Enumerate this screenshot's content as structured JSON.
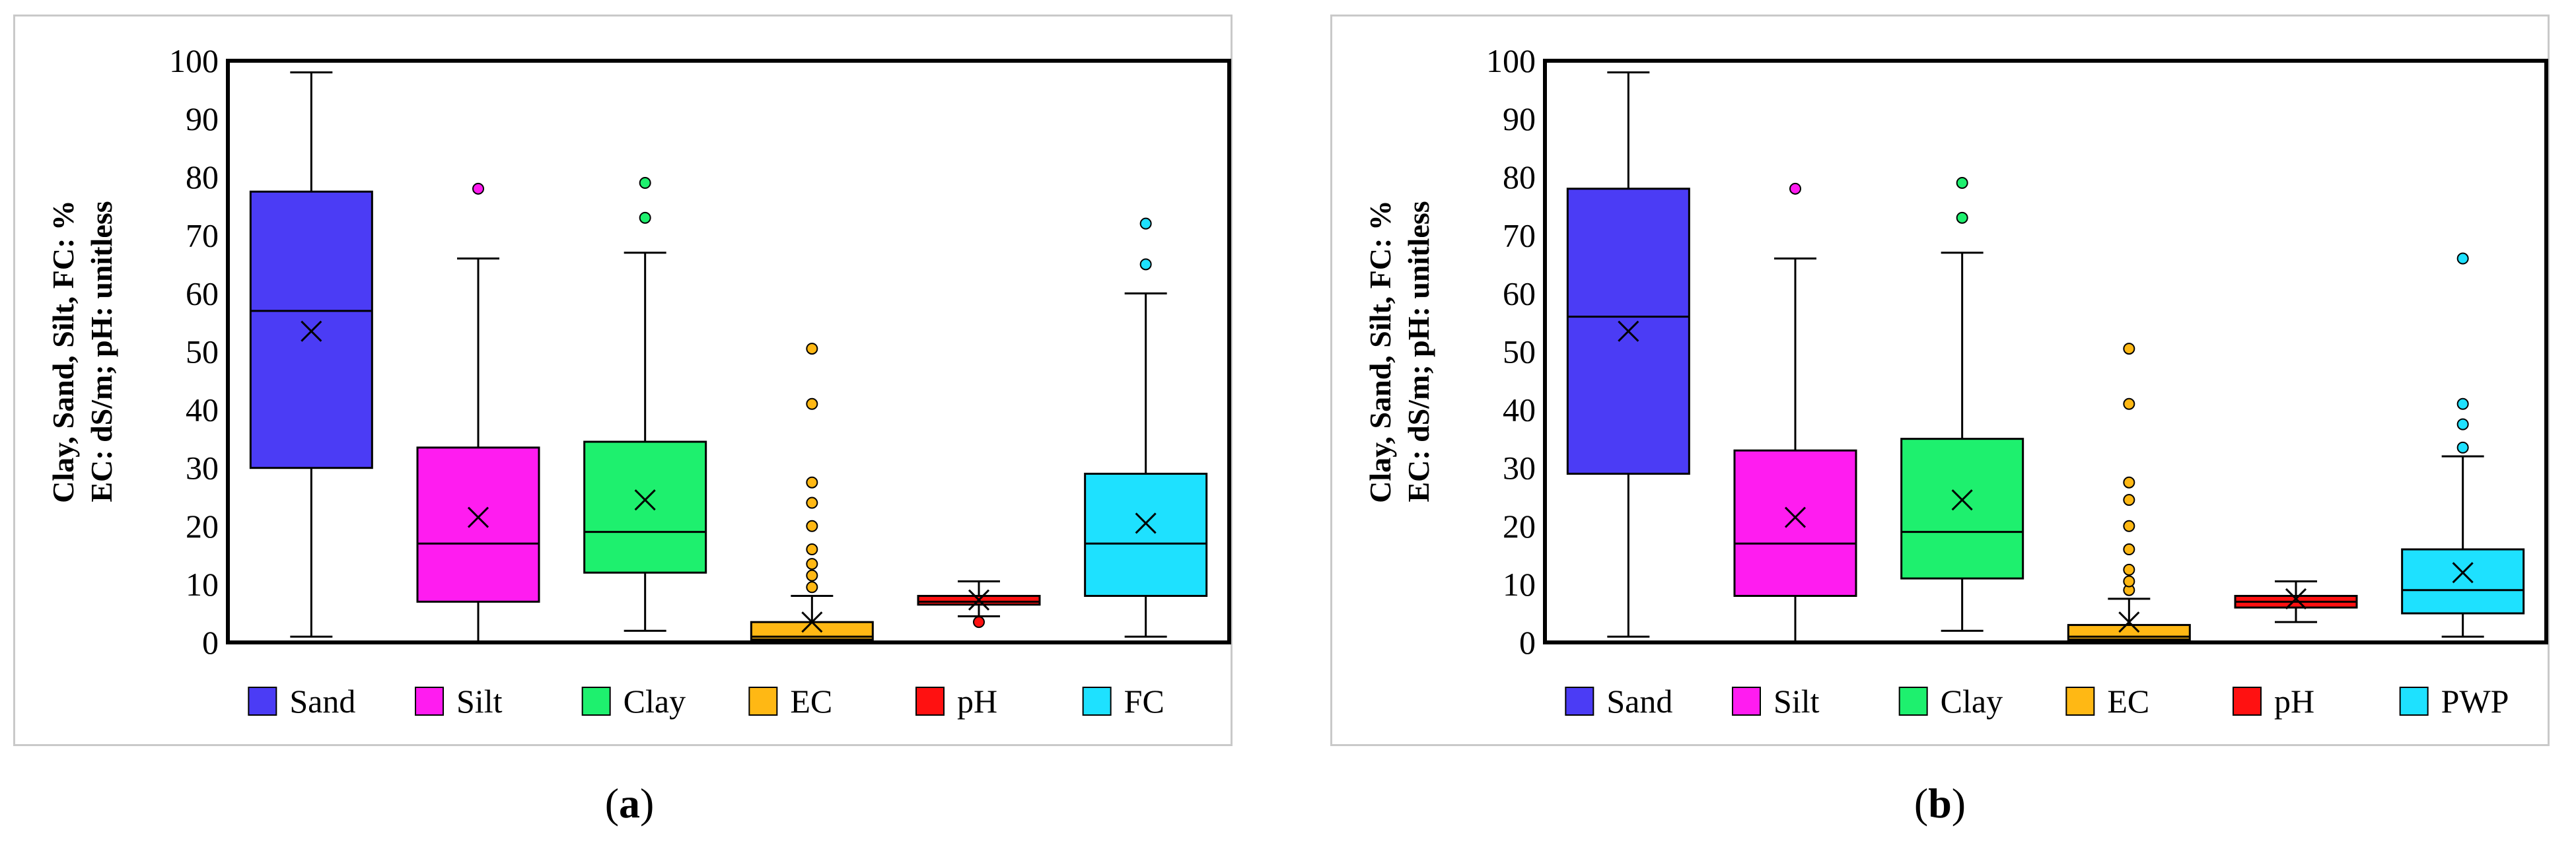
{
  "chart_data": [
    {
      "type": "box",
      "panel_label": "a",
      "ylabel_line1": "Clay, Sand, Silt, FC: %",
      "ylabel_line2": "EC: dS/m; pH: unitless",
      "ylim": [
        0,
        100
      ],
      "yticks": [
        0,
        10,
        20,
        30,
        40,
        50,
        60,
        70,
        80,
        90,
        100
      ],
      "legend_position": "bottom",
      "series": [
        {
          "name": "Sand",
          "color": "#4b3cf5",
          "min": 1,
          "q1": 30,
          "median": 57,
          "q3": 77.5,
          "max": 98,
          "mean": 53.5,
          "outliers": []
        },
        {
          "name": "Silt",
          "color": "#ff1cf0",
          "min": 0,
          "q1": 7,
          "median": 17,
          "q3": 33.5,
          "max": 66,
          "mean": 21.5,
          "outliers": [
            78
          ]
        },
        {
          "name": "Clay",
          "color": "#1ef06e",
          "min": 2,
          "q1": 12,
          "median": 19,
          "q3": 34.5,
          "max": 67,
          "mean": 24.5,
          "outliers": [
            73,
            79
          ]
        },
        {
          "name": "EC",
          "color": "#ffb814",
          "min": 0,
          "q1": 0.5,
          "median": 1,
          "q3": 3.5,
          "max": 8,
          "mean": 3.5,
          "outliers": [
            9.5,
            11.5,
            13.5,
            16,
            20,
            24,
            27.5,
            41,
            50.5
          ]
        },
        {
          "name": "pH",
          "color": "#ff1111",
          "min": 4.5,
          "q1": 6.5,
          "median": 7,
          "q3": 8,
          "max": 10.5,
          "mean": 7.3,
          "outliers": [
            3.5
          ]
        },
        {
          "name": "FC",
          "color": "#1ee1ff",
          "min": 1,
          "q1": 8,
          "median": 17,
          "q3": 29,
          "max": 60,
          "mean": 20.5,
          "outliers": [
            65,
            72
          ]
        }
      ]
    },
    {
      "type": "box",
      "panel_label": "b",
      "ylabel_line1": "Clay, Sand, Silt, FC: %",
      "ylabel_line2": "EC: dS/m; pH: unitless",
      "ylim": [
        0,
        100
      ],
      "yticks": [
        0,
        10,
        20,
        30,
        40,
        50,
        60,
        70,
        80,
        90,
        100
      ],
      "legend_position": "bottom",
      "series": [
        {
          "name": "Sand",
          "color": "#4b3cf5",
          "min": 1,
          "q1": 29,
          "median": 56,
          "q3": 78,
          "max": 98,
          "mean": 53.5,
          "outliers": []
        },
        {
          "name": "Silt",
          "color": "#ff1cf0",
          "min": 0,
          "q1": 8,
          "median": 17,
          "q3": 33,
          "max": 66,
          "mean": 21.5,
          "outliers": [
            78
          ]
        },
        {
          "name": "Clay",
          "color": "#1ef06e",
          "min": 2,
          "q1": 11,
          "median": 19,
          "q3": 35,
          "max": 67,
          "mean": 24.5,
          "outliers": [
            73,
            79
          ]
        },
        {
          "name": "EC",
          "color": "#ffb814",
          "min": 0,
          "q1": 0.5,
          "median": 1,
          "q3": 3,
          "max": 7.5,
          "mean": 3.5,
          "outliers": [
            9,
            10.5,
            12.5,
            16,
            20,
            24.5,
            27.5,
            41,
            50.5
          ]
        },
        {
          "name": "pH",
          "color": "#ff1111",
          "min": 3.5,
          "q1": 6,
          "median": 7,
          "q3": 8,
          "max": 10.5,
          "mean": 7.5,
          "outliers": []
        },
        {
          "name": "PWP",
          "color": "#1ee1ff",
          "min": 1,
          "q1": 5,
          "median": 9,
          "q3": 16,
          "max": 32,
          "mean": 12,
          "outliers": [
            33.5,
            37.5,
            41,
            66
          ]
        }
      ]
    }
  ]
}
